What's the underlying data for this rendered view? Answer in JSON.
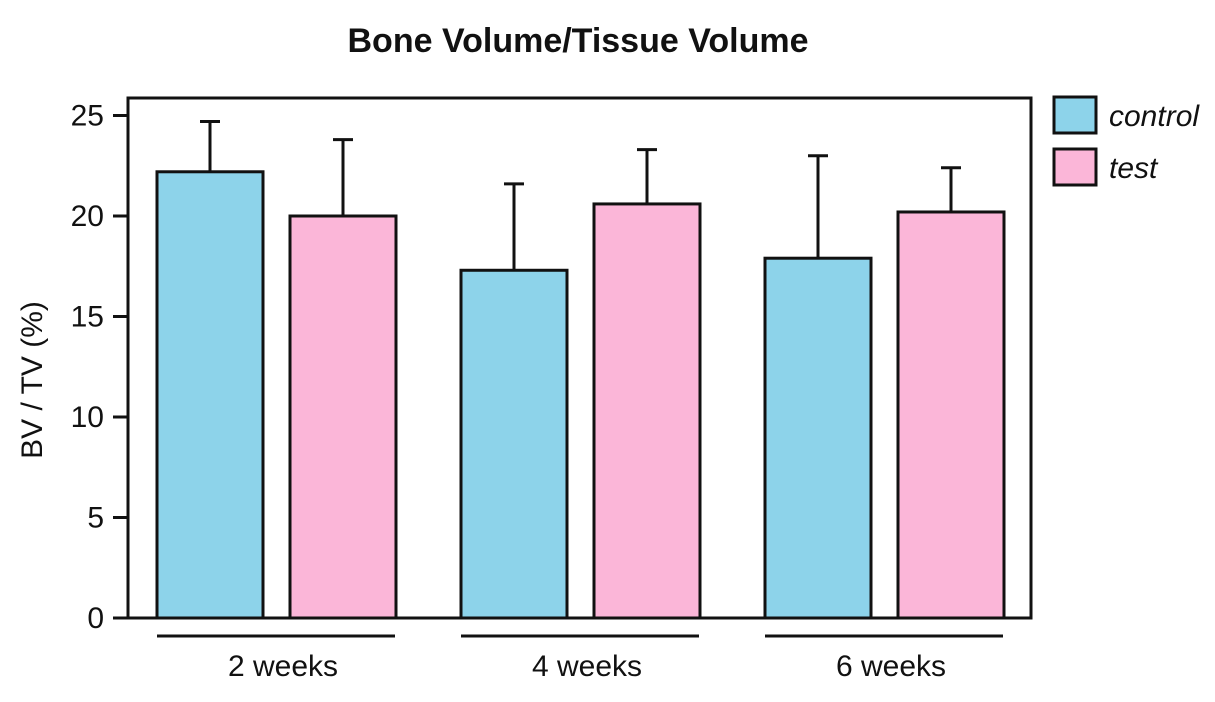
{
  "chart_data": {
    "type": "bar",
    "title": "Bone Volume/Tissue Volume",
    "xlabel": "",
    "ylabel": "BV / TV (%)",
    "ylim": [
      0,
      25
    ],
    "yticks": [
      0,
      5,
      10,
      15,
      20,
      25
    ],
    "ytick_labels": [
      "0",
      "5",
      "10",
      "15",
      "20",
      "25"
    ],
    "categories": [
      "2 weeks",
      "4 weeks",
      "6 weeks"
    ],
    "series": [
      {
        "name": "control",
        "color": "#8dd3ea",
        "values": [
          22.2,
          17.3,
          17.9
        ],
        "errors": [
          2.5,
          4.3,
          5.1
        ]
      },
      {
        "name": "test",
        "color": "#fbb6d8",
        "values": [
          20.0,
          20.6,
          20.2
        ],
        "errors": [
          3.8,
          2.7,
          2.2
        ]
      }
    ],
    "error_bars": "upper",
    "legend_position": "top-right",
    "grid": false
  }
}
